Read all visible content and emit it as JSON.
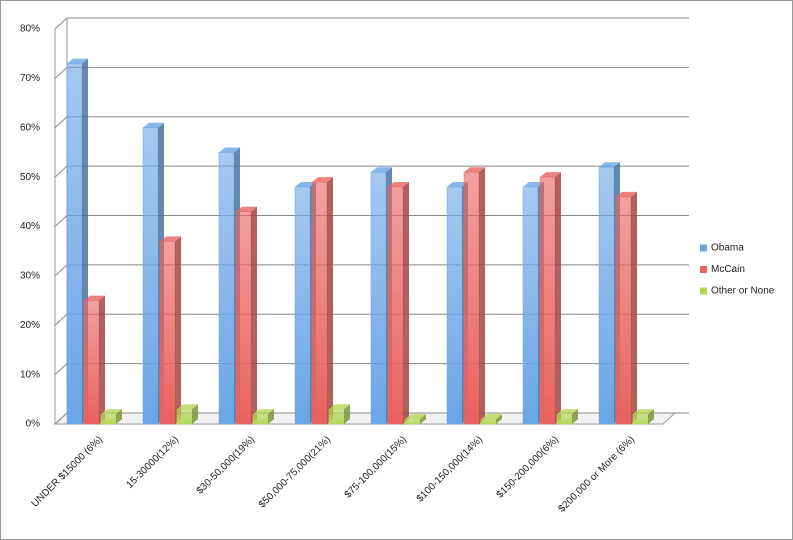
{
  "chart_data": {
    "type": "bar3d",
    "categories": [
      "UNDER $15000 (6%)",
      "15-30000(12%)",
      "$30-50,000(19%)",
      "$50,000-75,000(21%)",
      "$75-100,000(15%)",
      "$100-150,000(14%)",
      "$150-200,000(6%)",
      "$200,000 or More (6%)"
    ],
    "series": [
      {
        "name": "Obama",
        "color": "#6aa5e6",
        "values": [
          73,
          60,
          55,
          48,
          51,
          48,
          48,
          52
        ]
      },
      {
        "name": "McCain",
        "color": "#e9625d",
        "values": [
          25,
          37,
          43,
          49,
          48,
          51,
          50,
          46
        ]
      },
      {
        "name": "Other or None",
        "color": "#b3d655",
        "values": [
          2,
          3,
          2,
          3,
          1,
          1,
          2,
          2
        ]
      }
    ],
    "ylim": [
      0,
      80
    ],
    "yticks": [
      {
        "value": 0,
        "label": "0%"
      },
      {
        "value": 10,
        "label": "10%"
      },
      {
        "value": 20,
        "label": "20%"
      },
      {
        "value": 30,
        "label": "30%"
      },
      {
        "value": 40,
        "label": "40%"
      },
      {
        "value": 50,
        "label": "50%"
      },
      {
        "value": 60,
        "label": "60%"
      },
      {
        "value": 70,
        "label": "70%"
      },
      {
        "value": 80,
        "label": "80%"
      }
    ],
    "grid": true,
    "legend": "right"
  }
}
